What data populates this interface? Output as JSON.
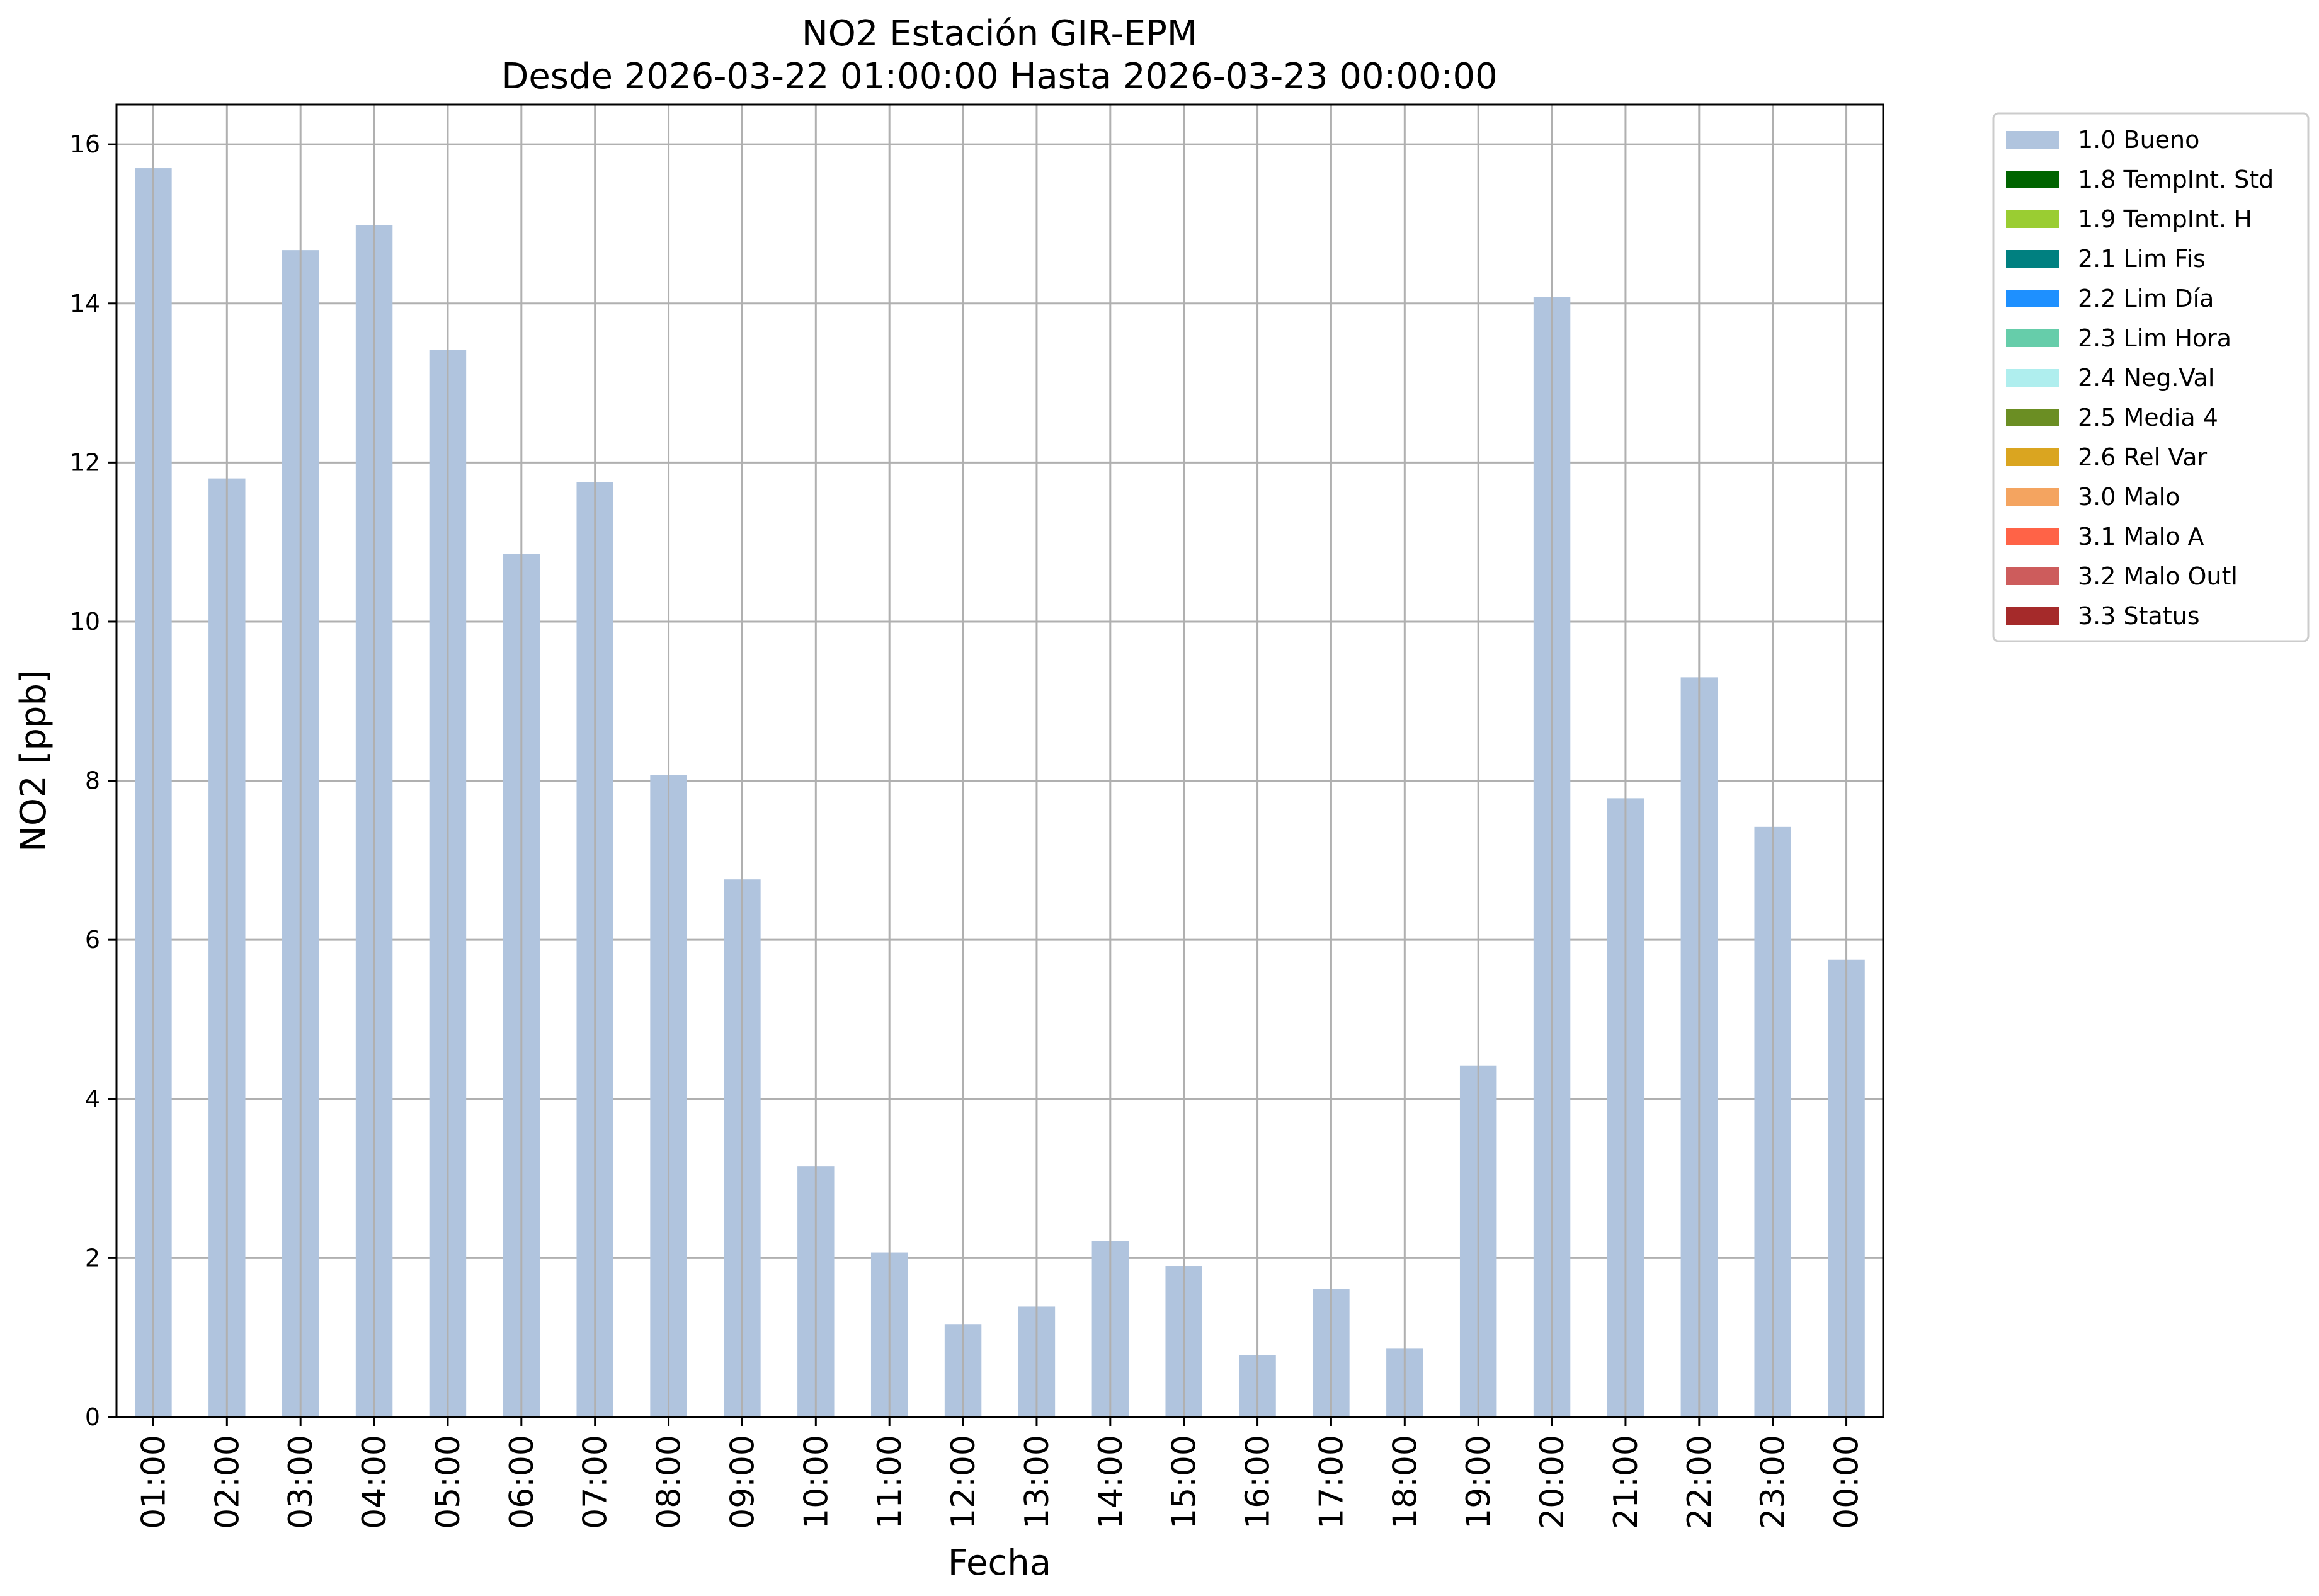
{
  "chart_data": {
    "type": "bar",
    "title": "NO2 Estación GIR-EPM",
    "subtitle": "Desde 2026-03-22 01:00:00 Hasta 2026-03-23 00:00:00",
    "xlabel": "Fecha",
    "ylabel": "NO2 [ppb]",
    "ylim": [
      0,
      16.5
    ],
    "yticks": [
      0,
      2,
      4,
      6,
      8,
      10,
      12,
      14,
      16
    ],
    "grid": true,
    "legend_position": "outside-top-right",
    "categories": [
      "01:00",
      "02:00",
      "03:00",
      "04:00",
      "05:00",
      "06:00",
      "07:00",
      "08:00",
      "09:00",
      "10:00",
      "11:00",
      "12:00",
      "13:00",
      "14:00",
      "15:00",
      "16:00",
      "17:00",
      "18:00",
      "19:00",
      "20:00",
      "21:00",
      "22:00",
      "23:00",
      "00:00"
    ],
    "series": [
      {
        "name": "1.0 Bueno",
        "color": "#b0c4de",
        "values": [
          15.7,
          11.8,
          14.67,
          14.98,
          13.42,
          10.85,
          11.75,
          8.07,
          6.76,
          3.15,
          2.07,
          1.17,
          1.39,
          2.21,
          1.9,
          0.78,
          1.61,
          0.86,
          4.42,
          14.08,
          7.78,
          9.3,
          7.42,
          5.75
        ]
      }
    ],
    "legend": [
      {
        "label": "1.0 Bueno",
        "color": "#b0c4de"
      },
      {
        "label": "1.8 TempInt. Std",
        "color": "#006400"
      },
      {
        "label": "1.9 TempInt. H",
        "color": "#9acd32"
      },
      {
        "label": "2.1 Lim Fis",
        "color": "#008080"
      },
      {
        "label": "2.2 Lim Día",
        "color": "#1e90ff"
      },
      {
        "label": "2.3 Lim Hora",
        "color": "#66cdaa"
      },
      {
        "label": "2.4 Neg.Val",
        "color": "#afeeee"
      },
      {
        "label": "2.5 Media 4",
        "color": "#6b8e23"
      },
      {
        "label": "2.6 Rel Var",
        "color": "#daa520"
      },
      {
        "label": "3.0 Malo",
        "color": "#f4a460"
      },
      {
        "label": "3.1 Malo A",
        "color": "#ff6347"
      },
      {
        "label": "3.2 Malo Outl",
        "color": "#cd5c5c"
      },
      {
        "label": "3.3 Status",
        "color": "#a52a2a"
      }
    ],
    "colors": {
      "grid": "#b0b0b0",
      "axes": "#000000"
    }
  }
}
